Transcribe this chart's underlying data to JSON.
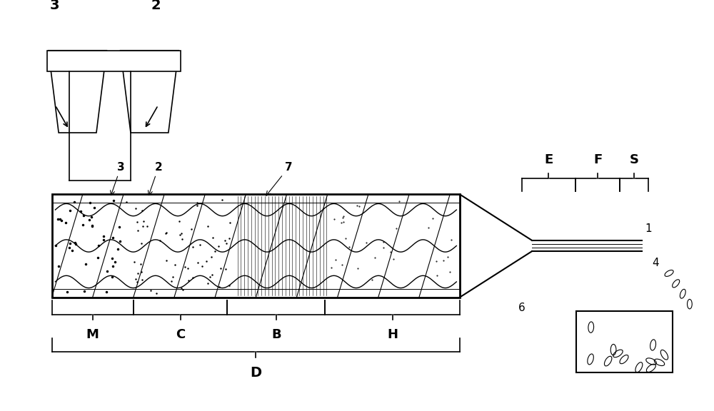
{
  "bg_color": "#ffffff",
  "line_color": "#000000",
  "fig_width": 10.0,
  "fig_height": 5.76,
  "dpi": 100,
  "labels": {
    "hopper_left_label": "3",
    "hopper_right_label": "2",
    "barrel_label_3": "3",
    "barrel_label_2": "2",
    "barrel_label_7": "7",
    "zone_M": "M",
    "zone_C": "C",
    "zone_B": "B",
    "zone_H": "H",
    "zone_D": "D",
    "zone_E": "E",
    "zone_F": "F",
    "zone_S": "S",
    "label_1": "1",
    "label_4": "4",
    "label_6": "6"
  }
}
